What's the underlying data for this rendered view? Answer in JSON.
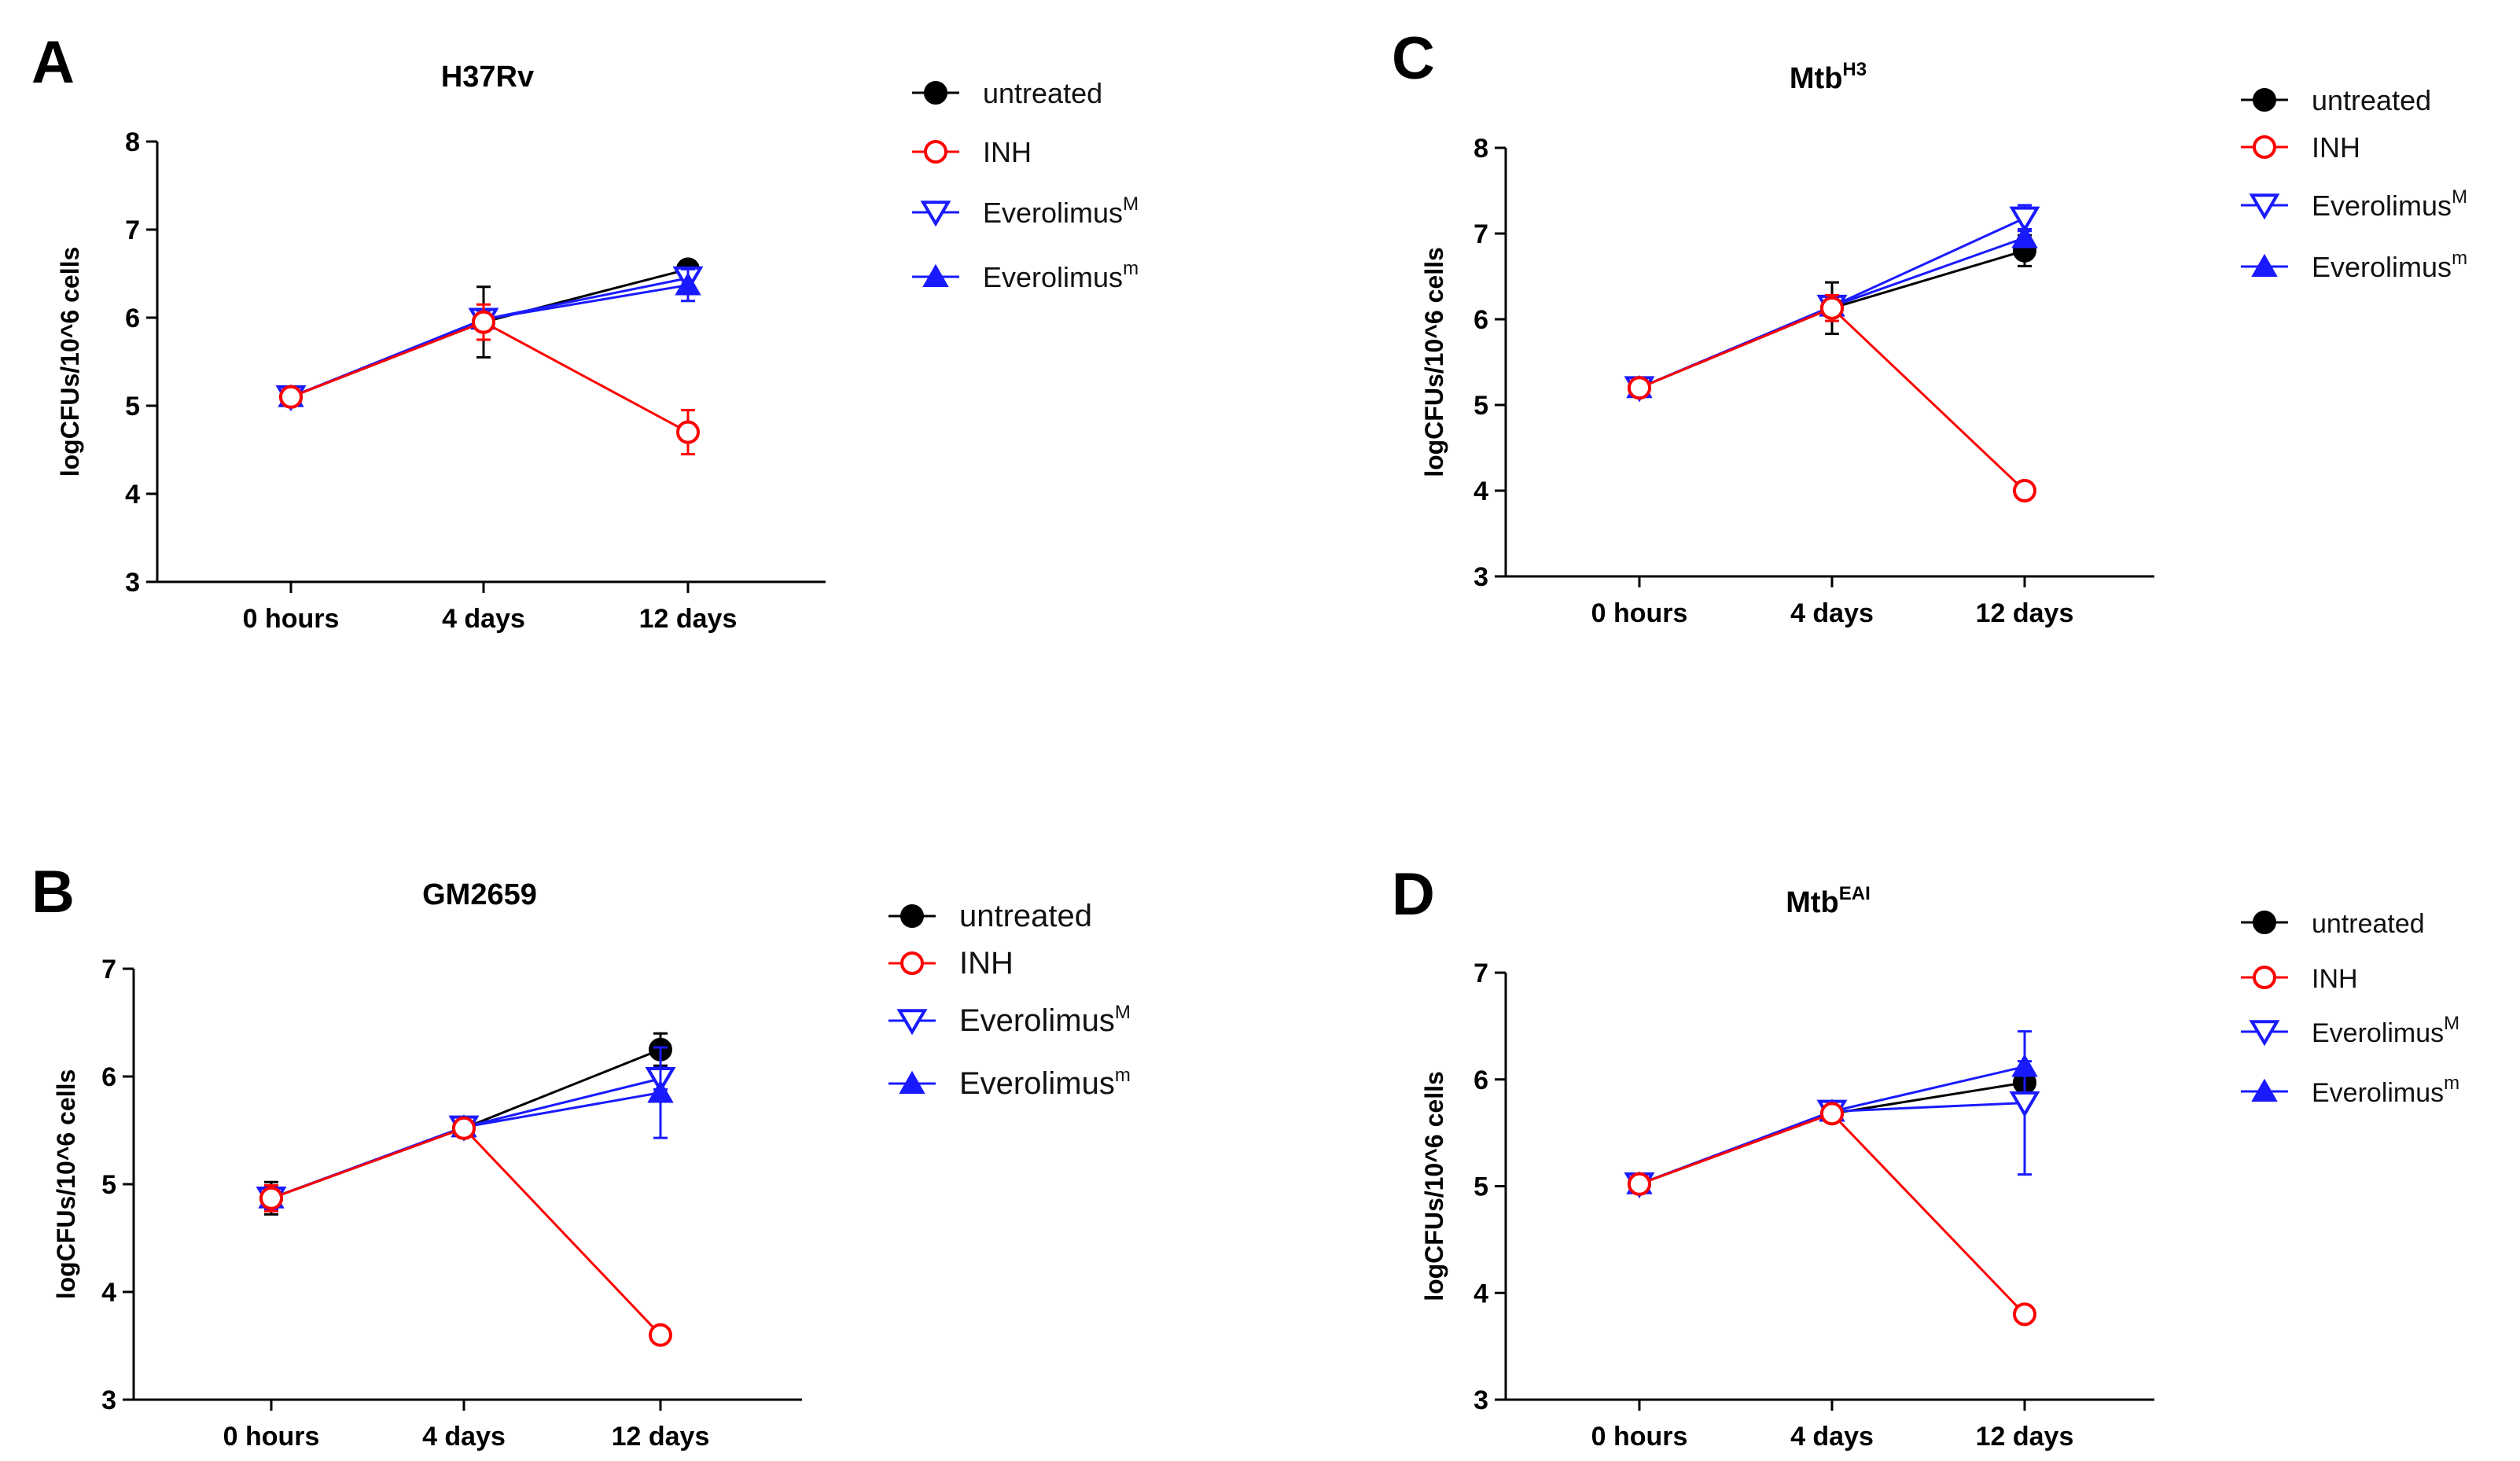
{
  "colors": {
    "untreated": "#000000",
    "INH": "#ff0000",
    "EverolimusM": "#1a1aff",
    "Everolimusm": "#1a1aff"
  },
  "legend": [
    {
      "key": "untreated",
      "label": "untreated",
      "sup": "",
      "marker": "filled-circle-icon"
    },
    {
      "key": "INH",
      "label": "INH",
      "sup": "",
      "marker": "open-circle-icon"
    },
    {
      "key": "EverolimusM",
      "label": "Everolimus",
      "sup": "M",
      "marker": "open-down-triangle-icon"
    },
    {
      "key": "Everolimusm",
      "label": "Everolimus",
      "sup": "m",
      "marker": "filled-up-triangle-icon"
    }
  ],
  "chart_data": [
    {
      "panel": "A",
      "type": "line",
      "title": "H37Rv",
      "title_sup": "",
      "xlabel": "",
      "ylabel": "logCFUs/10^6 cells",
      "categories": [
        "0 hours",
        "4 days",
        "12 days"
      ],
      "ylim": [
        3,
        8
      ],
      "yticks": [
        3,
        4,
        5,
        6,
        7,
        8
      ],
      "series": [
        {
          "name": "untreated",
          "values": [
            5.1,
            5.95,
            6.55
          ],
          "err": [
            0.05,
            0.4,
            0.05
          ]
        },
        {
          "name": "INH",
          "values": [
            5.1,
            5.95,
            4.7
          ],
          "err": [
            0.05,
            0.2,
            0.25
          ]
        },
        {
          "name": "EverolimusM",
          "values": [
            5.1,
            5.98,
            6.45
          ],
          "err": [
            0.05,
            0.1,
            0.1
          ]
        },
        {
          "name": "Everolimusm",
          "values": [
            5.1,
            5.98,
            6.37
          ],
          "err": [
            0.05,
            0.1,
            0.18
          ]
        }
      ]
    },
    {
      "panel": "B",
      "type": "line",
      "title": "GM2659",
      "title_sup": "",
      "xlabel": "",
      "ylabel": "logCFUs/10^6 cells",
      "categories": [
        "0 hours",
        "4 days",
        "12 days"
      ],
      "ylim": [
        3,
        7
      ],
      "yticks": [
        3,
        4,
        5,
        6,
        7
      ],
      "series": [
        {
          "name": "untreated",
          "values": [
            4.87,
            5.52,
            6.25
          ],
          "err": [
            0.15,
            0.05,
            0.15
          ]
        },
        {
          "name": "INH",
          "values": [
            4.87,
            5.52,
            3.6
          ],
          "err": [
            0.12,
            0.05,
            0.05
          ]
        },
        {
          "name": "EverolimusM",
          "values": [
            4.87,
            5.53,
            5.98
          ],
          "err": [
            0.1,
            0.05,
            0.1
          ]
        },
        {
          "name": "Everolimusm",
          "values": [
            4.87,
            5.53,
            5.85
          ],
          "err": [
            0.1,
            0.05,
            0.42
          ]
        }
      ]
    },
    {
      "panel": "C",
      "type": "line",
      "title": "Mtb",
      "title_sup": "H3",
      "xlabel": "",
      "ylabel": "logCFUs/10^6 cells",
      "categories": [
        "0 hours",
        "4 days",
        "12 days"
      ],
      "ylim": [
        3,
        8
      ],
      "yticks": [
        3,
        4,
        5,
        6,
        7,
        8
      ],
      "series": [
        {
          "name": "untreated",
          "values": [
            5.2,
            6.13,
            6.8
          ],
          "err": [
            0.05,
            0.3,
            0.18
          ]
        },
        {
          "name": "INH",
          "values": [
            5.2,
            6.13,
            4.0
          ],
          "err": [
            0.05,
            0.15,
            0.05
          ]
        },
        {
          "name": "EverolimusM",
          "values": [
            5.2,
            6.15,
            7.18
          ],
          "err": [
            0.05,
            0.1,
            0.15
          ]
        },
        {
          "name": "Everolimusm",
          "values": [
            5.2,
            6.15,
            6.95
          ],
          "err": [
            0.05,
            0.1,
            0.1
          ]
        }
      ]
    },
    {
      "panel": "D",
      "type": "line",
      "title": "Mtb",
      "title_sup": "EAI",
      "xlabel": "",
      "ylabel": "logCFUs/10^6 cells",
      "categories": [
        "0 hours",
        "4 days",
        "12 days"
      ],
      "ylim": [
        3,
        7
      ],
      "yticks": [
        3,
        4,
        5,
        6,
        7
      ],
      "series": [
        {
          "name": "untreated",
          "values": [
            5.02,
            5.68,
            5.97
          ],
          "err": [
            0.05,
            0.05,
            0.05
          ]
        },
        {
          "name": "INH",
          "values": [
            5.02,
            5.68,
            3.8
          ],
          "err": [
            0.05,
            0.05,
            0.05
          ]
        },
        {
          "name": "EverolimusM",
          "values": [
            5.02,
            5.7,
            5.78
          ],
          "err": [
            0.05,
            0.05,
            0.67
          ]
        },
        {
          "name": "Everolimusm",
          "values": [
            5.02,
            5.7,
            6.12
          ],
          "err": [
            0.05,
            0.05,
            0.05
          ]
        }
      ]
    }
  ]
}
